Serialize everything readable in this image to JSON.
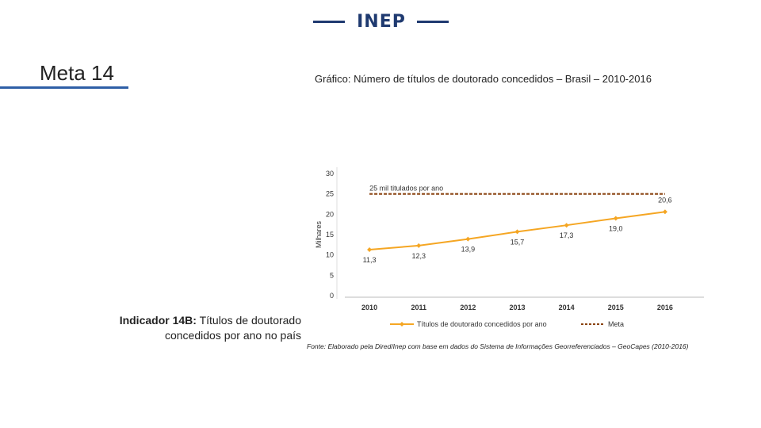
{
  "header": {
    "logo_text": "INEP"
  },
  "slide": {
    "title": "Meta 14",
    "chart_caption": "Gráfico: Número de títulos de doutorado concedidos – Brasil – 2010-2016",
    "indicator_prefix": "Indicador 14B:",
    "indicator_text": "Títulos de doutorado concedidos por ano no país",
    "source": "Fonte: Elaborado pela Dired/Inep com base em dados do Sistema de Informações Georreferenciados – GeoCapes (2010-2016)"
  },
  "colors": {
    "accent": "#2e5fa6",
    "logo": "#1f3a70",
    "series": "#f5a623",
    "meta": "#8b4513"
  },
  "chart_data": {
    "type": "line",
    "ylabel": "Milhares",
    "ylim": [
      0,
      30
    ],
    "yticks": [
      0,
      5,
      10,
      15,
      20,
      25,
      30
    ],
    "x": [
      "2010",
      "2011",
      "2012",
      "2013",
      "2014",
      "2015",
      "2016"
    ],
    "series": [
      {
        "name": "Títulos de doutorado concedidos por ano",
        "values": [
          11.3,
          12.3,
          13.9,
          15.7,
          17.3,
          19.0,
          20.6
        ],
        "labels": [
          "11,3",
          "12,3",
          "13,9",
          "15,7",
          "17,3",
          "19,0",
          "20,6"
        ]
      },
      {
        "name": "Meta",
        "values": [
          25,
          25,
          25,
          25,
          25,
          25,
          25
        ]
      }
    ],
    "annotation": "25 mil titulados por ano",
    "legend": "bottom"
  }
}
